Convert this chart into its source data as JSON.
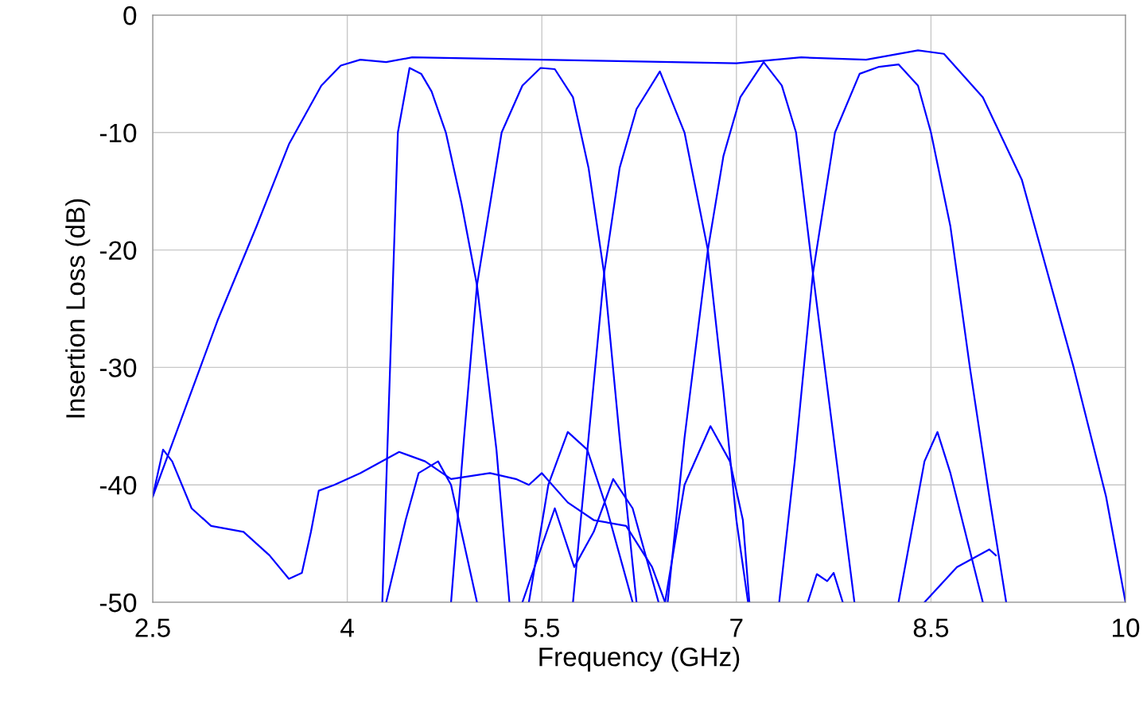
{
  "chart_data": {
    "type": "line",
    "xlabel": "Frequency (GHz)",
    "ylabel": "Insertion Loss (dB)",
    "xlim": [
      2.5,
      10
    ],
    "xticks": [
      2.5,
      4,
      5.5,
      7,
      8.5,
      10
    ],
    "ylim": [
      -50,
      0
    ],
    "yticks": [
      -50,
      -40,
      -30,
      -20,
      -10,
      0
    ],
    "grid": true,
    "legend": false,
    "marker": "none",
    "line_style": "solid",
    "series": [
      {
        "color": "#0000ff",
        "x": [
          2.5,
          2.7,
          3.0,
          3.3,
          3.55,
          3.8,
          3.95,
          4.1,
          4.3,
          4.5,
          5.0,
          5.5,
          6.0,
          6.5,
          7.0,
          7.5,
          8.0,
          8.4,
          8.6,
          8.9,
          9.2,
          9.6,
          9.85,
          10.0
        ],
        "values": [
          -41,
          -35,
          -26,
          -18,
          -11,
          -6,
          -4.3,
          -3.8,
          -4.0,
          -3.6,
          -3.7,
          -3.8,
          -3.9,
          -4.0,
          -4.1,
          -3.6,
          -3.8,
          -3.0,
          -3.3,
          -7,
          -14,
          -30,
          -41,
          -50
        ]
      },
      {
        "color": "#0000ff",
        "x": [
          4.27,
          4.33,
          4.39,
          4.48,
          4.57,
          4.65,
          4.76,
          4.88,
          5.0,
          5.15,
          5.25
        ],
        "values": [
          -50,
          -30,
          -10,
          -4.5,
          -5,
          -6.5,
          -10,
          -16,
          -23,
          -37,
          -50
        ]
      },
      {
        "color": "#0000ff",
        "x": [
          4.8,
          4.9,
          5.0,
          5.19,
          5.35,
          5.49,
          5.6,
          5.74,
          5.86,
          5.98,
          6.1,
          6.23
        ],
        "values": [
          -50,
          -36,
          -23,
          -10,
          -6,
          -4.5,
          -4.6,
          -7,
          -13,
          -22,
          -36,
          -50
        ]
      },
      {
        "color": "#0000ff",
        "x": [
          5.74,
          5.86,
          5.98,
          6.1,
          6.23,
          6.41,
          6.6,
          6.78,
          6.9,
          7.0,
          7.09
        ],
        "values": [
          -50,
          -36,
          -22,
          -13,
          -8,
          -4.8,
          -10,
          -20,
          -32,
          -43,
          -50
        ]
      },
      {
        "color": "#0000ff",
        "x": [
          6.47,
          6.6,
          6.78,
          6.9,
          7.03,
          7.21,
          7.35,
          7.46,
          7.59,
          7.75,
          7.91
        ],
        "values": [
          -50,
          -36,
          -20,
          -12,
          -7,
          -4,
          -6,
          -10,
          -22,
          -36,
          -50
        ]
      },
      {
        "color": "#0000ff",
        "x": [
          7.33,
          7.45,
          7.59,
          7.76,
          7.95,
          8.1,
          8.25,
          8.4,
          8.5,
          8.65,
          8.8,
          8.95,
          9.08
        ],
        "values": [
          -50,
          -38,
          -22,
          -10,
          -5,
          -4.4,
          -4.2,
          -6,
          -10,
          -18,
          -30,
          -41,
          -50
        ]
      },
      {
        "color": "#0000ff",
        "x": [
          2.5,
          2.58,
          2.65,
          2.8,
          2.95,
          3.2,
          3.4,
          3.55,
          3.65,
          3.72,
          3.78,
          3.9,
          4.1,
          4.4,
          4.6,
          4.8,
          5.1,
          5.3,
          5.4,
          5.5,
          5.7,
          5.9,
          6.15,
          6.35,
          6.45
        ],
        "values": [
          -41,
          -37,
          -38,
          -42,
          -43.5,
          -44,
          -46,
          -48,
          -47.5,
          -44,
          -40.5,
          -40,
          -39,
          -37.2,
          -38,
          -39.5,
          -39,
          -39.5,
          -40,
          -39,
          -41.5,
          -43,
          -43.5,
          -47,
          -50
        ]
      },
      {
        "color": "#0000ff",
        "x": [
          4.3,
          4.45,
          4.55,
          4.7,
          4.8,
          4.9,
          5.0
        ],
        "values": [
          -50,
          -43,
          -39,
          -38,
          -40,
          -45,
          -50
        ]
      },
      {
        "color": "#0000ff",
        "x": [
          5.4,
          5.55,
          5.7,
          5.85,
          6.0,
          6.1,
          6.2
        ],
        "values": [
          -50,
          -40,
          -35.5,
          -37,
          -42,
          -46,
          -50
        ]
      },
      {
        "color": "#0000ff",
        "x": [
          5.35,
          5.6,
          5.75,
          5.9,
          6.05,
          6.2,
          6.4
        ],
        "values": [
          -50,
          -42,
          -47,
          -44,
          -39.5,
          -42,
          -50
        ]
      },
      {
        "color": "#0000ff",
        "x": [
          6.45,
          6.6,
          6.8,
          6.95,
          7.05,
          7.1
        ],
        "values": [
          -50,
          -40,
          -35,
          -38,
          -43,
          -50
        ]
      },
      {
        "color": "#0000ff",
        "x": [
          7.55,
          7.62,
          7.7,
          7.75,
          7.82
        ],
        "values": [
          -50,
          -47.6,
          -48.2,
          -47.5,
          -50
        ]
      },
      {
        "color": "#0000ff",
        "x": [
          8.25,
          8.45,
          8.55,
          8.65,
          8.9
        ],
        "values": [
          -50,
          -38,
          -35.5,
          -39,
          -50
        ]
      },
      {
        "color": "#0000ff",
        "x": [
          8.45,
          8.7,
          8.95,
          9.0
        ],
        "values": [
          -50,
          -47,
          -45.5,
          -46
        ]
      }
    ]
  }
}
